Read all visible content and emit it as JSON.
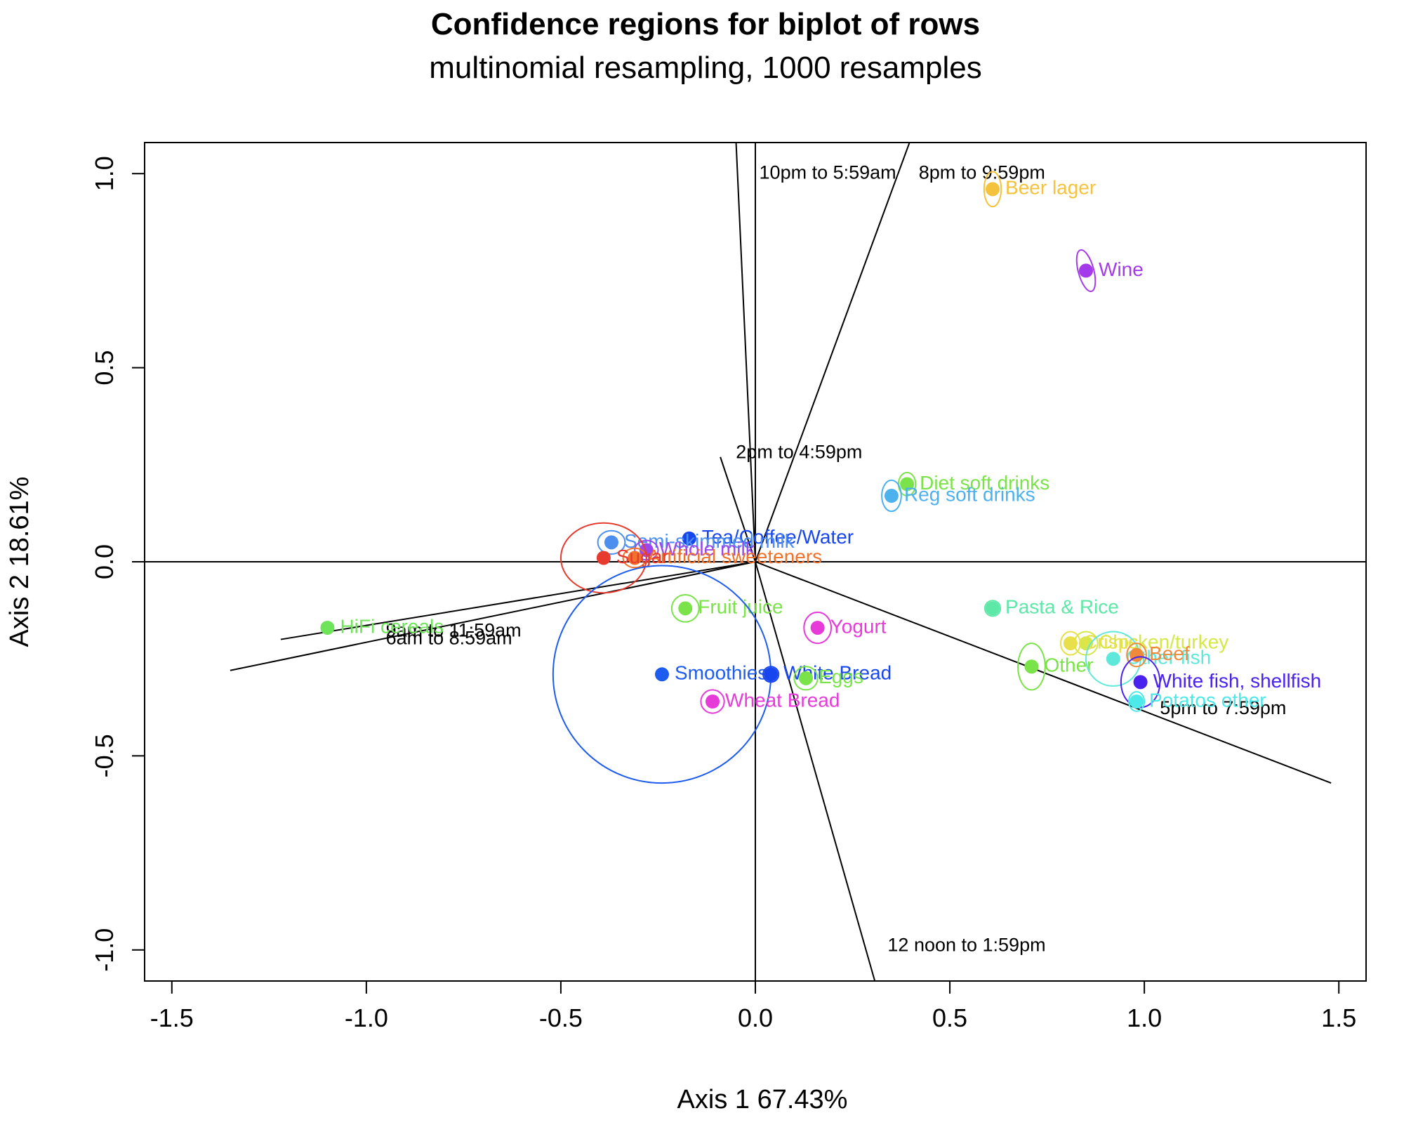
{
  "chart_data": {
    "type": "scatter",
    "title": "Confidence regions for biplot of rows",
    "subtitle": "multinomial resampling,  1000 resamples",
    "xlabel": "Axis 1    67.43%",
    "ylabel": "Axis 2    18.61%",
    "xlim": [
      -1.57,
      1.57
    ],
    "ylim": [
      -1.08,
      1.08
    ],
    "xticks": [
      -1.5,
      -1.0,
      -0.5,
      0.0,
      0.5,
      1.0,
      1.5
    ],
    "xtick_labels": [
      "-1.5",
      "-1.0",
      "-0.5",
      "0.0",
      "0.5",
      "1.0",
      "1.5"
    ],
    "yticks": [
      -1.0,
      -0.5,
      0.0,
      0.5,
      1.0
    ],
    "ytick_labels": [
      "-1.0",
      "-0.5",
      "0.0",
      "0.5",
      "1.0"
    ],
    "grid": false,
    "reference_lines": [
      0,
      0
    ],
    "points": [
      {
        "label": "Beer lager",
        "x": 0.61,
        "y": 0.96,
        "color": "#f5c23e",
        "ellipse": {
          "rx": 0.022,
          "ry": 0.045,
          "angle": 0
        }
      },
      {
        "label": "Wine",
        "x": 0.85,
        "y": 0.75,
        "color": "#a43bea",
        "ellipse": {
          "rx": 0.02,
          "ry": 0.055,
          "angle": -15
        }
      },
      {
        "label": "Diet soft drinks",
        "x": 0.39,
        "y": 0.2,
        "color": "#7be34a",
        "ellipse": {
          "rx": 0.022,
          "ry": 0.03,
          "angle": 0
        }
      },
      {
        "label": "Reg soft drinks",
        "x": 0.35,
        "y": 0.17,
        "color": "#4db1ee",
        "ellipse": {
          "rx": 0.025,
          "ry": 0.04,
          "angle": 0
        }
      },
      {
        "label": "Tea/Coffee/Water",
        "x": -0.17,
        "y": 0.06,
        "color": "#1846ee",
        "ellipse": null
      },
      {
        "label": "Semi-skimmed milk",
        "x": -0.37,
        "y": 0.05,
        "color": "#4d8fee",
        "ellipse": {
          "rx": 0.035,
          "ry": 0.03,
          "angle": 0
        }
      },
      {
        "label": "Whole milk",
        "x": -0.28,
        "y": 0.03,
        "color": "#9c47ee",
        "ellipse": {
          "rx": 0.03,
          "ry": 0.025,
          "angle": 0
        }
      },
      {
        "label": "Artificial sweeteners",
        "x": -0.31,
        "y": 0.01,
        "color": "#f0722b",
        "ellipse": {
          "rx": 0.03,
          "ry": 0.025,
          "angle": 0
        }
      },
      {
        "label": "Sugar",
        "x": -0.39,
        "y": 0.01,
        "color": "#e63b2e",
        "ellipse": {
          "rx": 0.11,
          "ry": 0.09,
          "angle": 0
        }
      },
      {
        "label": "HiFi cereals",
        "x": -1.1,
        "y": -0.17,
        "color": "#6fe35a",
        "ellipse": null
      },
      {
        "label": "Fruit juice",
        "x": -0.18,
        "y": -0.12,
        "color": "#7be34a",
        "ellipse": {
          "rx": 0.035,
          "ry": 0.035,
          "angle": 0
        }
      },
      {
        "label": "Yogurt",
        "x": 0.16,
        "y": -0.17,
        "color": "#e63bd9",
        "ellipse": {
          "rx": 0.035,
          "ry": 0.04,
          "angle": 0
        }
      },
      {
        "label": "Smoothies",
        "x": -0.24,
        "y": -0.29,
        "color": "#1e5cf0",
        "ellipse": {
          "rx": 0.28,
          "ry": 0.28,
          "angle": 0
        }
      },
      {
        "label": "White Bread",
        "x": 0.04,
        "y": -0.29,
        "color": "#1846ee",
        "ellipse": {
          "rx": 0.02,
          "ry": 0.02,
          "angle": 0
        }
      },
      {
        "label": "Eggs",
        "x": 0.13,
        "y": -0.3,
        "color": "#7be34a",
        "ellipse": {
          "rx": 0.03,
          "ry": 0.03,
          "angle": 0
        }
      },
      {
        "label": "Wheat Bread",
        "x": -0.11,
        "y": -0.36,
        "color": "#e63bd9",
        "ellipse": {
          "rx": 0.03,
          "ry": 0.03,
          "angle": 0
        }
      },
      {
        "label": "Pasta & Rice",
        "x": 0.61,
        "y": -0.12,
        "color": "#5ee8a8",
        "ellipse": {
          "rx": 0.02,
          "ry": 0.02,
          "angle": 0
        }
      },
      {
        "label": "Chicken/turkey",
        "x": 0.85,
        "y": -0.21,
        "color": "#d4e84a",
        "ellipse": {
          "rx": 0.03,
          "ry": 0.03,
          "angle": 0
        }
      },
      {
        "label": "Crisps",
        "x": 0.81,
        "y": -0.21,
        "color": "#e8e04a",
        "ellipse": {
          "rx": 0.025,
          "ry": 0.03,
          "angle": 0
        }
      },
      {
        "label": "Other",
        "x": 0.71,
        "y": -0.27,
        "color": "#7be34a",
        "ellipse": {
          "rx": 0.035,
          "ry": 0.06,
          "angle": 0
        }
      },
      {
        "label": "Other fish",
        "x": 0.92,
        "y": -0.25,
        "color": "#5ee8d9",
        "ellipse": {
          "rx": 0.07,
          "ry": 0.07,
          "angle": 0
        }
      },
      {
        "label": "Beef",
        "x": 0.98,
        "y": -0.24,
        "color": "#f08a3b",
        "ellipse": {
          "rx": 0.025,
          "ry": 0.03,
          "angle": 0
        }
      },
      {
        "label": "White fish, shellfish",
        "x": 0.99,
        "y": -0.31,
        "color": "#4a22ee",
        "ellipse": {
          "rx": 0.05,
          "ry": 0.065,
          "angle": 0
        }
      },
      {
        "label": "Potatos other",
        "x": 0.98,
        "y": -0.36,
        "color": "#4de8e8",
        "ellipse": {
          "rx": 0.02,
          "ry": 0.025,
          "angle": 0
        }
      }
    ],
    "axes_vectors": [
      {
        "label": "10pm to 5:59am",
        "x": -0.05,
        "y": 1.09,
        "label_x": 0.01,
        "label_y": 1.0
      },
      {
        "label": "8pm to 9:59pm",
        "x": 0.4,
        "y": 1.09,
        "label_x": 0.42,
        "label_y": 1.0
      },
      {
        "label": "2pm to 4:59pm",
        "x": -0.09,
        "y": 0.27,
        "label_x": -0.05,
        "label_y": 0.28
      },
      {
        "label": "9am to 11:59am",
        "x": -1.35,
        "y": -0.28,
        "label_x": -0.95,
        "label_y": -0.18
      },
      {
        "label": "6am to 8:59am",
        "x": -1.22,
        "y": -0.2,
        "label_x": -0.95,
        "label_y": -0.2
      },
      {
        "label": "12 noon to 1:59pm",
        "x": 0.31,
        "y": -1.09,
        "label_x": 0.34,
        "label_y": -0.99
      },
      {
        "label": "5pm to 7:59pm",
        "x": 1.48,
        "y": -0.57,
        "label_x": 1.04,
        "label_y": -0.38
      }
    ]
  }
}
